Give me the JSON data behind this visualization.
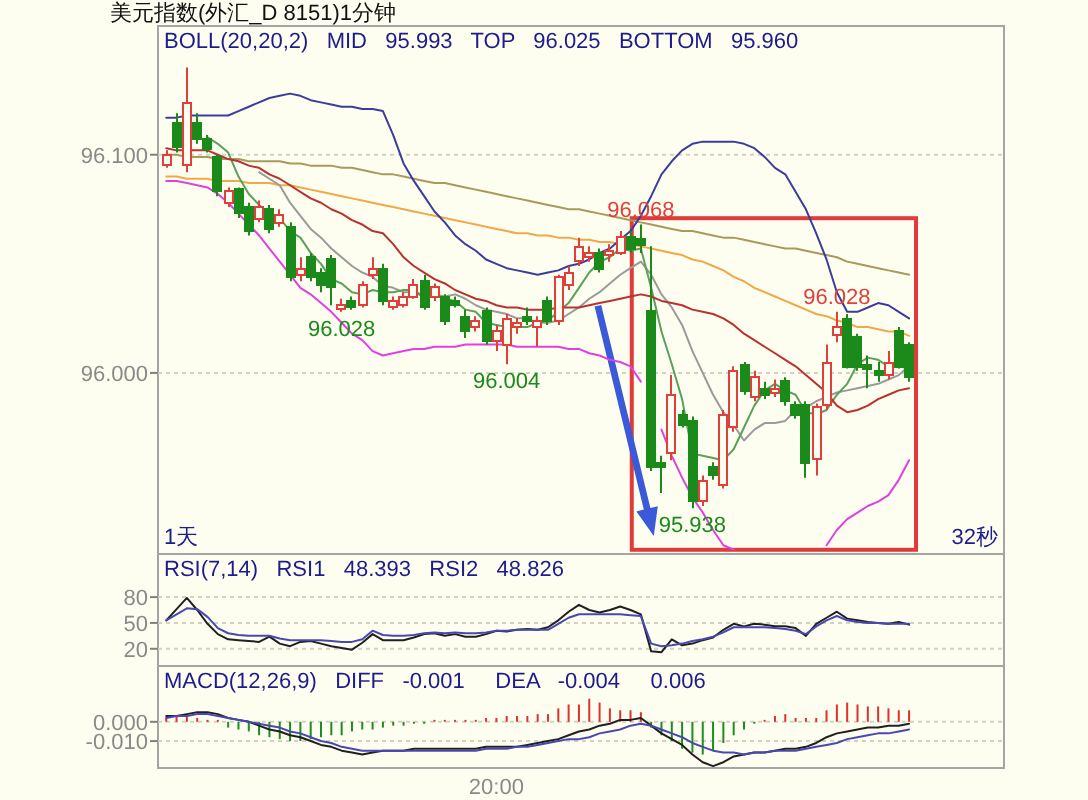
{
  "chart_data": [
    {
      "type": "candlestick",
      "title": "美元指数(外汇_D 8151)1分钟",
      "subtitle": "BOLL(20,20,2)   MID   95.993   TOP   96.025   BOTTOM   95.960",
      "categories": [
        null,
        null,
        null,
        null,
        null,
        null,
        null,
        null,
        null,
        null,
        null,
        null,
        null,
        null,
        null,
        null,
        null,
        null,
        null,
        null,
        null,
        null,
        null,
        null,
        null,
        null,
        null,
        null,
        null,
        null,
        null,
        null,
        null,
        null,
        null,
        null,
        null,
        null,
        null,
        null,
        null,
        null,
        null,
        null,
        null,
        null,
        null,
        null,
        null,
        null,
        null,
        null,
        null,
        null,
        null,
        null,
        null,
        null,
        null,
        null,
        null,
        null,
        null,
        null,
        null,
        null,
        null,
        null,
        null,
        null,
        null,
        null,
        null
      ],
      "ohlc": [
        [
          96.095,
          96.102,
          96.094,
          96.1
        ],
        [
          96.115,
          96.119,
          96.101,
          96.104
        ],
        [
          96.095,
          96.14,
          96.092,
          96.124
        ],
        [
          96.115,
          96.119,
          96.105,
          96.107
        ],
        [
          96.107,
          96.109,
          96.101,
          96.103
        ],
        [
          96.099,
          96.1,
          96.081,
          96.083
        ],
        [
          96.078,
          96.085,
          96.076,
          96.083
        ],
        [
          96.084,
          96.085,
          96.071,
          96.073
        ],
        [
          96.076,
          96.078,
          96.063,
          96.065
        ],
        [
          96.071,
          96.079,
          96.069,
          96.076
        ],
        [
          96.075,
          96.077,
          96.064,
          96.066
        ],
        [
          96.069,
          96.075,
          96.067,
          96.072
        ],
        [
          96.067,
          96.069,
          96.042,
          96.044
        ],
        [
          96.045,
          96.053,
          96.042,
          96.048
        ],
        [
          96.053,
          96.055,
          96.042,
          96.044
        ],
        [
          96.046,
          96.048,
          96.037,
          96.04
        ],
        [
          96.052,
          96.054,
          96.031,
          96.039
        ],
        [
          96.029,
          96.034,
          96.028,
          96.031
        ],
        [
          96.033,
          96.035,
          96.029,
          96.03
        ],
        [
          96.031,
          96.042,
          96.03,
          96.04
        ],
        [
          96.045,
          96.053,
          96.043,
          96.048
        ],
        [
          96.048,
          96.05,
          96.031,
          96.033
        ],
        [
          96.03,
          96.035,
          96.029,
          96.033
        ],
        [
          96.031,
          96.037,
          96.03,
          96.035
        ],
        [
          96.035,
          96.043,
          96.034,
          96.04
        ],
        [
          96.042,
          96.045,
          96.029,
          96.03
        ],
        [
          96.035,
          96.041,
          96.033,
          96.039
        ],
        [
          96.035,
          96.036,
          96.022,
          96.024
        ],
        [
          96.033,
          96.035,
          96.03,
          96.032
        ],
        [
          96.026,
          96.029,
          96.016,
          96.019
        ],
        [
          96.021,
          96.026,
          96.019,
          96.024
        ],
        [
          96.028,
          96.03,
          96.013,
          96.015
        ],
        [
          96.015,
          96.022,
          96.01,
          96.019
        ],
        [
          96.013,
          96.027,
          96.004,
          96.025
        ],
        [
          96.021,
          96.025,
          96.018,
          96.023
        ],
        [
          96.026,
          96.03,
          96.022,
          96.024
        ],
        [
          96.021,
          96.026,
          96.012,
          96.024
        ],
        [
          96.033,
          96.035,
          96.022,
          96.024
        ],
        [
          96.024,
          96.045,
          96.022,
          96.044
        ],
        [
          96.04,
          96.049,
          96.038,
          96.046
        ],
        [
          96.051,
          96.062,
          96.049,
          96.058
        ],
        [
          96.053,
          96.058,
          96.051,
          96.055
        ],
        [
          96.055,
          96.057,
          96.046,
          96.048
        ],
        [
          96.054,
          96.059,
          96.051,
          96.056
        ],
        [
          96.055,
          96.065,
          96.054,
          96.062
        ],
        [
          96.062,
          96.065,
          96.055,
          96.057
        ],
        [
          96.061,
          96.068,
          96.055,
          96.059
        ],
        [
          96.028,
          96.058,
          95.955,
          95.957
        ],
        [
          95.959,
          95.962,
          95.945,
          95.957
        ],
        [
          95.963,
          95.999,
          95.96,
          95.99
        ],
        [
          95.981,
          95.983,
          95.975,
          95.976
        ],
        [
          95.978,
          95.98,
          95.938,
          95.941
        ],
        [
          95.941,
          95.953,
          95.939,
          95.95
        ],
        [
          95.957,
          95.959,
          95.951,
          95.953
        ],
        [
          95.949,
          95.983,
          95.947,
          95.981
        ],
        [
          95.975,
          96.003,
          95.973,
          96.001
        ],
        [
          96.004,
          96.005,
          95.99,
          95.992
        ],
        [
          95.989,
          96.001,
          95.987,
          95.998
        ],
        [
          95.993,
          95.996,
          95.988,
          95.99
        ],
        [
          95.992,
          95.997,
          95.989,
          95.993
        ],
        [
          95.996,
          95.998,
          95.985,
          95.987
        ],
        [
          95.985,
          95.987,
          95.979,
          95.981
        ],
        [
          95.985,
          95.987,
          95.952,
          95.959
        ],
        [
          95.961,
          95.986,
          95.953,
          95.984
        ],
        [
          95.985,
          96.013,
          95.983,
          96.005
        ],
        [
          96.017,
          96.028,
          96.014,
          96.021
        ],
        [
          96.025,
          96.027,
          96.002,
          96.003
        ],
        [
          96.016,
          96.018,
          96.001,
          96.003
        ],
        [
          96.004,
          96.008,
          95.993,
          96.002
        ],
        [
          96.001,
          96.005,
          95.996,
          96.0
        ],
        [
          95.999,
          96.01,
          95.997,
          96.005
        ],
        [
          96.019,
          96.021,
          96.002,
          96.003
        ],
        [
          96.013,
          96.014,
          95.996,
          95.998
        ]
      ],
      "colors": [
        "#e0403c",
        "#1a8a1a",
        "#e0403c",
        "#1a8a1a",
        "#1a8a1a",
        "#1a8a1a",
        "#e0403c",
        "#1a8a1a",
        "#1a8a1a",
        "#e0403c",
        "#1a8a1a",
        "#e0403c",
        "#1a8a1a",
        "#e0403c",
        "#1a8a1a",
        "#1a8a1a",
        "#1a8a1a",
        "#e0403c",
        "#1a8a1a",
        "#e0403c",
        "#e0403c",
        "#1a8a1a",
        "#e0403c",
        "#e0403c",
        "#e0403c",
        "#1a8a1a",
        "#e0403c",
        "#1a8a1a",
        "#1a8a1a",
        "#1a8a1a",
        "#e0403c",
        "#1a8a1a",
        "#e0403c",
        "#e0403c",
        "#e0403c",
        "#1a8a1a",
        "#e0403c",
        "#1a8a1a",
        "#e0403c",
        "#e0403c",
        "#e0403c",
        "#e0403c",
        "#1a8a1a",
        "#e0403c",
        "#e0403c",
        "#1a8a1a",
        "#1a8a1a",
        "#1a8a1a",
        "#1a8a1a",
        "#e0403c",
        "#1a8a1a",
        "#1a8a1a",
        "#e0403c",
        "#1a8a1a",
        "#e0403c",
        "#e0403c",
        "#1a8a1a",
        "#e0403c",
        "#1a8a1a",
        "#e0403c",
        "#1a8a1a",
        "#1a8a1a",
        "#1a8a1a",
        "#e0403c",
        "#e0403c",
        "#e0403c",
        "#1a8a1a",
        "#1a8a1a",
        "#1a8a1a",
        "#1a8a1a",
        "#e0403c",
        "#1a8a1a",
        "#1a8a1a"
      ],
      "series": [
        {
          "type": "line",
          "color": "#a89a5a",
          "values": [
            96.1,
            96.1,
            96.099,
            96.099,
            96.099,
            96.098,
            96.098,
            96.098,
            96.097,
            96.097,
            96.097,
            96.097,
            96.096,
            96.096,
            96.095,
            96.095,
            96.095,
            96.094,
            96.094,
            96.093,
            96.092,
            96.091,
            96.091,
            96.09,
            96.089,
            96.088,
            96.087,
            96.087,
            96.086,
            96.085,
            96.084,
            96.083,
            96.082,
            96.081,
            96.08,
            96.079,
            96.078,
            96.077,
            96.076,
            96.075,
            96.075,
            96.074,
            96.073,
            96.072,
            96.071,
            96.07,
            96.069,
            96.068,
            96.067,
            96.066,
            96.065,
            96.065,
            96.064,
            96.063,
            96.062,
            96.062,
            96.061,
            96.06,
            96.059,
            96.058,
            96.057,
            96.057,
            96.056,
            96.055,
            96.054,
            96.053,
            96.051,
            96.05,
            96.049,
            96.048,
            96.047,
            96.046,
            96.045
          ]
        },
        {
          "type": "line",
          "color": "#f0a848",
          "values": [
            96.09,
            96.09,
            96.089,
            96.089,
            96.089,
            96.088,
            96.088,
            96.088,
            96.087,
            96.087,
            96.087,
            96.086,
            96.086,
            96.085,
            96.084,
            96.083,
            96.082,
            96.081,
            96.08,
            96.079,
            96.078,
            96.077,
            96.076,
            96.075,
            96.074,
            96.073,
            96.072,
            96.071,
            96.07,
            96.069,
            96.068,
            96.067,
            96.066,
            96.065,
            96.064,
            96.064,
            96.063,
            96.063,
            96.062,
            96.062,
            96.061,
            96.061,
            96.06,
            96.06,
            96.059,
            96.059,
            96.058,
            96.057,
            96.056,
            96.055,
            96.054,
            96.052,
            96.051,
            96.049,
            96.047,
            96.044,
            96.042,
            96.039,
            96.037,
            96.035,
            96.033,
            96.031,
            96.029,
            96.027,
            96.026,
            96.024,
            96.023,
            96.021,
            96.021,
            96.02,
            96.019,
            96.019,
            96.017
          ]
        },
        {
          "type": "line",
          "color": "#9a9a9a",
          "values": [
            null,
            null,
            null,
            null,
            null,
            null,
            null,
            null,
            null,
            96.092,
            96.089,
            96.086,
            96.078,
            96.072,
            96.066,
            96.062,
            96.057,
            96.053,
            96.049,
            96.046,
            96.044,
            96.04,
            96.039,
            96.037,
            96.037,
            96.036,
            96.036,
            96.035,
            96.036,
            96.034,
            96.031,
            96.029,
            96.028,
            96.027,
            96.025,
            96.025,
            96.023,
            96.023,
            96.024,
            96.027,
            96.03,
            96.034,
            96.037,
            96.041,
            96.045,
            96.048,
            96.051,
            96.045,
            96.036,
            96.03,
            96.022,
            96.01,
            96.0,
            95.99,
            95.982,
            95.976,
            95.969,
            95.974,
            95.977,
            95.977,
            95.978,
            95.983,
            95.984,
            95.987,
            95.989,
            95.991,
            95.992,
            95.993,
            95.994,
            95.995,
            95.997,
            95.999,
            96.003
          ]
        },
        {
          "type": "line",
          "color": "#5aa05a",
          "values": [
            null,
            null,
            null,
            null,
            96.108,
            96.105,
            96.101,
            96.09,
            96.082,
            96.077,
            96.073,
            96.071,
            96.065,
            96.062,
            96.055,
            96.05,
            96.043,
            96.041,
            96.037,
            96.036,
            96.038,
            96.037,
            96.037,
            96.038,
            96.038,
            96.034,
            96.036,
            96.034,
            96.033,
            96.029,
            96.028,
            96.023,
            96.022,
            96.021,
            96.021,
            96.021,
            96.023,
            96.024,
            96.028,
            96.032,
            96.039,
            96.046,
            96.051,
            96.053,
            96.057,
            96.056,
            96.057,
            96.039,
            96.019,
            96.004,
            95.988,
            95.963,
            95.962,
            95.961,
            95.96,
            95.965,
            95.975,
            95.985,
            95.992,
            95.995,
            95.992,
            95.99,
            95.982,
            95.981,
            95.983,
            95.99,
            95.995,
            96.004,
            96.007,
            96.006,
            96.003,
            96.003,
            96.002
          ]
        },
        {
          "type": "line",
          "color": "#b83232",
          "values": [
            96.103,
            96.102,
            96.102,
            96.102,
            96.102,
            96.1,
            96.098,
            96.097,
            96.095,
            96.094,
            96.091,
            96.089,
            96.086,
            96.083,
            96.08,
            96.078,
            96.075,
            96.073,
            96.07,
            96.068,
            96.065,
            96.064,
            96.059,
            96.053,
            96.049,
            96.046,
            96.043,
            96.041,
            96.038,
            96.036,
            96.034,
            96.033,
            96.031,
            96.03,
            96.03,
            96.029,
            96.029,
            96.029,
            96.03,
            96.03,
            96.03,
            96.031,
            96.032,
            96.033,
            96.034,
            96.035,
            96.036,
            96.035,
            96.033,
            96.032,
            96.031,
            96.029,
            96.028,
            96.027,
            96.025,
            96.022,
            96.018,
            96.015,
            96.012,
            96.009,
            96.006,
            96.003,
            95.999,
            95.995,
            95.991,
            95.985,
            95.982,
            95.983,
            95.985,
            95.988,
            95.99,
            95.992,
            95.993
          ]
        },
        {
          "type": "line",
          "color": "#3c3c9c",
          "values": [
            96.117,
            96.117,
            96.118,
            96.118,
            96.118,
            96.118,
            96.118,
            96.12,
            96.122,
            96.124,
            96.126,
            96.127,
            96.128,
            96.127,
            96.125,
            96.124,
            96.123,
            96.122,
            96.122,
            96.121,
            96.121,
            96.12,
            96.109,
            96.096,
            96.088,
            96.081,
            96.074,
            96.069,
            96.063,
            96.059,
            96.056,
            96.052,
            96.05,
            96.048,
            96.047,
            96.046,
            96.045,
            96.046,
            96.047,
            96.049,
            96.05,
            96.052,
            96.055,
            96.057,
            96.061,
            96.065,
            96.072,
            96.081,
            96.091,
            96.097,
            96.102,
            96.105,
            96.106,
            96.106,
            96.106,
            96.106,
            96.105,
            96.103,
            96.099,
            96.094,
            96.091,
            96.083,
            96.075,
            96.064,
            96.052,
            96.037,
            96.028,
            96.028,
            96.03,
            96.032,
            96.031,
            96.028,
            96.025
          ]
        },
        {
          "type": "line",
          "color": "#e040e0",
          "values": [
            96.088,
            96.088,
            96.087,
            96.086,
            96.085,
            96.082,
            96.078,
            96.073,
            96.068,
            96.063,
            96.057,
            96.051,
            96.045,
            96.039,
            96.036,
            96.032,
            96.028,
            96.023,
            96.018,
            96.015,
            96.01,
            96.008,
            96.009,
            96.01,
            96.011,
            96.011,
            96.012,
            96.012,
            96.012,
            96.013,
            96.013,
            96.013,
            96.013,
            96.013,
            96.012,
            96.012,
            96.012,
            96.012,
            96.012,
            96.011,
            96.011,
            96.009,
            96.008,
            96.006,
            96.005,
            96.003,
            95.996,
            null,
            95.974,
            95.962,
            95.952,
            95.943,
            95.936,
            95.928,
            95.921,
            95.919,
            null,
            null,
            null,
            null,
            null,
            null,
            null,
            null,
            95.921,
            95.928,
            95.933,
            95.936,
            95.939,
            95.941,
            95.944,
            95.951,
            95.96
          ]
        }
      ],
      "ylim": [
        95.917,
        96.159
      ],
      "yticks": [
        {
          "value": 96.0,
          "label": "96.000"
        },
        {
          "value": 96.1,
          "label": "96.100"
        }
      ],
      "grid": "y",
      "tick_labels": "y",
      "annotations": [
        {
          "text": "96.068",
          "y": 96.068
        },
        {
          "text": "96.028",
          "y": 96.028
        },
        {
          "text": "96.004",
          "y": 96.004
        },
        {
          "text": "95.938",
          "y": 95.938
        },
        {
          "text": "96.028",
          "y": 96.028
        },
        "1天",
        "32秒"
      ]
    },
    {
      "type": "line",
      "subtitle": "RSI(7,14)   RSI1   48.393   RSI2   48.826",
      "categories": [
        null,
        null,
        null,
        null,
        null,
        null,
        null,
        null,
        null,
        null,
        null,
        null,
        null,
        null,
        null,
        null,
        null,
        null,
        null,
        null,
        null,
        null,
        null,
        null,
        null,
        null,
        null,
        null,
        null,
        null,
        null,
        null,
        null,
        null,
        null,
        null,
        null,
        null,
        null,
        null,
        null,
        null,
        null,
        null,
        null,
        null,
        null,
        null,
        null,
        null,
        null,
        null,
        null,
        null,
        null,
        null,
        null,
        null,
        null,
        null,
        null,
        null,
        null,
        null,
        null,
        null,
        null,
        null,
        null,
        null,
        null,
        null,
        null
      ],
      "series": [
        {
          "color": "#202020",
          "values": [
            53,
            66,
            79,
            65,
            49,
            37,
            31,
            30,
            29,
            28,
            34,
            26,
            23,
            28,
            29,
            26,
            23,
            21,
            19,
            27,
            37,
            30,
            30,
            30,
            33,
            37,
            38,
            35,
            37,
            34,
            34,
            37,
            41,
            40,
            42,
            43,
            42,
            45,
            53,
            63,
            71,
            65,
            62,
            65,
            69,
            65,
            60,
            17,
            16,
            31,
            24,
            26,
            30,
            33,
            42,
            49,
            46,
            49,
            48,
            46,
            46,
            44,
            35,
            49,
            56,
            63,
            55,
            53,
            51,
            50,
            49,
            51,
            48
          ]
        },
        {
          "color": "#4848b0",
          "values": [
            53,
            60,
            67,
            66,
            57,
            44,
            38,
            36,
            35,
            35,
            35,
            32,
            30,
            30,
            30,
            30,
            29,
            28,
            28,
            31,
            41,
            36,
            35,
            35,
            36,
            38,
            39,
            38,
            39,
            38,
            38,
            39,
            41,
            41,
            42,
            42,
            42,
            42,
            49,
            56,
            60,
            60,
            60,
            60,
            60,
            59,
            58,
            26,
            23,
            24,
            26,
            29,
            31,
            34,
            39,
            45,
            45,
            45,
            45,
            44,
            43,
            41,
            37,
            46,
            53,
            58,
            53,
            51,
            50,
            50,
            49,
            49,
            49
          ]
        }
      ],
      "ylim": [
        0,
        130
      ],
      "yticks": [
        20,
        50,
        80
      ],
      "grid": "y",
      "tick_labels": "y"
    },
    {
      "type": "line",
      "subtitle": "MACD(12,26,9)   DIFF   -0.001     DEA   -0.004     0.006",
      "categories": [
        null,
        null,
        null,
        null,
        null,
        null,
        null,
        null,
        null,
        null,
        null,
        null,
        null,
        null,
        null,
        null,
        null,
        null,
        null,
        null,
        null,
        null,
        null,
        null,
        null,
        null,
        null,
        null,
        null,
        null,
        null,
        null,
        "20:00",
        null,
        null,
        null,
        null,
        null,
        null,
        null,
        null,
        null,
        null,
        null,
        null,
        null,
        null,
        null,
        null,
        null,
        null,
        null,
        null,
        null,
        null,
        null,
        null,
        null,
        null,
        null,
        null,
        null,
        null,
        null,
        null,
        null,
        null,
        null,
        null,
        null,
        null,
        null,
        null
      ],
      "series": [
        {
          "type": "bar",
          "colors": [
            "#e03030",
            "#e03030",
            "#e03030",
            "#e03030",
            "#e03030",
            "#e03030",
            "#1e8c1e",
            "#1e8c1e",
            "#1e8c1e",
            "#1e8c1e",
            "#1e8c1e",
            "#1e8c1e",
            "#1e8c1e",
            "#1e8c1e",
            "#1e8c1e",
            "#1e8c1e",
            "#1e8c1e",
            "#1e8c1e",
            "#1e8c1e",
            "#1e8c1e",
            "#1e8c1e",
            "#1e8c1e",
            "#1e8c1e",
            "#1e8c1e",
            "#1e8c1e",
            "#1e8c1e",
            "#e03030",
            "#e03030",
            "#e03030",
            "#e03030",
            "#e03030",
            "#e03030",
            "#e03030",
            "#e03030",
            "#e03030",
            "#e03030",
            "#e03030",
            "#e03030",
            "#e03030",
            "#e03030",
            "#e03030",
            "#e03030",
            "#e03030",
            "#e03030",
            "#e03030",
            "#e03030",
            "#e03030",
            "#1e8c1e",
            "#1e8c1e",
            "#1e8c1e",
            "#1e8c1e",
            "#1e8c1e",
            "#1e8c1e",
            "#1e8c1e",
            "#1e8c1e",
            "#1e8c1e",
            "#1e8c1e",
            "#1e8c1e",
            "#e03030",
            "#e03030",
            "#e03030",
            "#e03030",
            "#e03030",
            "#e03030",
            "#e03030",
            "#e03030",
            "#e03030",
            "#e03030",
            "#e03030",
            "#e03030",
            "#e03030",
            "#e03030",
            "#e03030"
          ],
          "values": [
            0.002,
            0.003,
            0.003,
            0.002,
            0.001,
            0.001,
            -0.003,
            -0.004,
            -0.005,
            -0.007,
            -0.008,
            -0.009,
            -0.01,
            -0.01,
            -0.009,
            -0.008,
            -0.007,
            -0.007,
            -0.005,
            -0.004,
            -0.004,
            -0.003,
            -0.002,
            -0.002,
            -0.001,
            -0.001,
            0.001,
            0.001,
            0.001,
            0.001,
            0.001,
            0.002,
            0.002,
            0.003,
            0.003,
            0.003,
            0.004,
            0.004,
            0.007,
            0.009,
            0.009,
            0.012,
            0.01,
            0.007,
            0.006,
            0.006,
            0.005,
            -0.003,
            -0.007,
            -0.01,
            -0.014,
            -0.016,
            -0.017,
            -0.015,
            -0.011,
            -0.007,
            -0.004,
            -0.001,
            0.001,
            0.003,
            0.004,
            0.002,
            0.002,
            0.002,
            0.006,
            0.009,
            0.01,
            0.009,
            0.008,
            0.008,
            0.007,
            0.006,
            0.006
          ]
        },
        {
          "type": "line",
          "color": "#202020",
          "values": [
            0.003,
            0.003,
            0.004,
            0.005,
            0.005,
            0.004,
            0.002,
            0.001,
            0,
            -0.002,
            -0.004,
            -0.005,
            -0.007,
            -0.008,
            -0.01,
            -0.012,
            -0.013,
            -0.015,
            -0.016,
            -0.017,
            -0.016,
            -0.015,
            -0.015,
            -0.015,
            -0.014,
            -0.014,
            -0.014,
            -0.014,
            -0.014,
            -0.014,
            -0.014,
            -0.013,
            -0.013,
            -0.013,
            -0.013,
            -0.012,
            -0.011,
            -0.01,
            -0.009,
            -0.007,
            -0.005,
            -0.004,
            -0.002,
            -0.001,
            0.001,
            0.001,
            0.002,
            -0.002,
            -0.006,
            -0.009,
            -0.012,
            -0.017,
            -0.021,
            -0.023,
            -0.021,
            -0.018,
            -0.017,
            -0.016,
            -0.016,
            -0.015,
            -0.014,
            -0.014,
            -0.013,
            -0.011,
            -0.008,
            -0.006,
            -0.005,
            -0.004,
            -0.003,
            -0.003,
            -0.002,
            -0.002,
            -0.001
          ]
        },
        {
          "type": "line",
          "color": "#4848b0",
          "values": [
            0.002,
            0.003,
            0.003,
            0.004,
            0.004,
            0.003,
            0.002,
            0.001,
            0,
            -0.001,
            -0.002,
            -0.003,
            -0.005,
            -0.006,
            -0.008,
            -0.01,
            -0.011,
            -0.013,
            -0.014,
            -0.015,
            -0.015,
            -0.015,
            -0.015,
            -0.015,
            -0.015,
            -0.015,
            -0.015,
            -0.015,
            -0.015,
            -0.015,
            -0.015,
            -0.014,
            -0.014,
            -0.014,
            -0.013,
            -0.013,
            -0.012,
            -0.011,
            -0.01,
            -0.009,
            -0.009,
            -0.008,
            -0.006,
            -0.005,
            -0.004,
            -0.002,
            -0.001,
            -0.002,
            -0.004,
            -0.006,
            -0.008,
            -0.011,
            -0.013,
            -0.015,
            -0.016,
            -0.016,
            -0.017,
            -0.016,
            -0.016,
            -0.015,
            -0.015,
            -0.015,
            -0.014,
            -0.013,
            -0.012,
            -0.011,
            -0.009,
            -0.008,
            -0.007,
            -0.006,
            -0.006,
            -0.005,
            -0.004
          ]
        }
      ],
      "ylim": [
        -0.024,
        0.029
      ],
      "yticks": [
        {
          "value": -0.01,
          "label": "-0.010"
        },
        {
          "value": 0,
          "label": "0.000"
        }
      ],
      "grid": "y"
    }
  ]
}
